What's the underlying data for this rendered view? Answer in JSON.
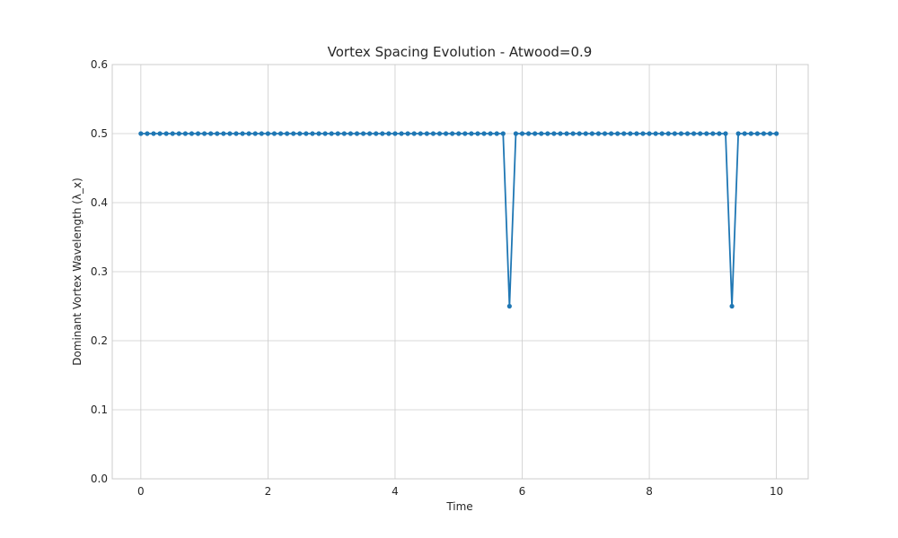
{
  "chart_data": {
    "type": "line",
    "title": "Vortex Spacing Evolution - Atwood=0.9",
    "xlabel": "Time",
    "ylabel": "Dominant Vortex Wavelength (λ_x)",
    "xlim": [
      -0.45,
      10.5
    ],
    "ylim": [
      0,
      0.6
    ],
    "xticks": [
      0,
      2,
      4,
      6,
      8,
      10
    ],
    "yticks": [
      0.0,
      0.1,
      0.2,
      0.3,
      0.4,
      0.5,
      0.6
    ],
    "ytick_labels": [
      "0.0",
      "0.1",
      "0.2",
      "0.3",
      "0.4",
      "0.5",
      "0.6"
    ],
    "grid": true,
    "line_color": "#1f77b4",
    "x": [
      0.0,
      0.1,
      0.2,
      0.3,
      0.4,
      0.5,
      0.6,
      0.7,
      0.8,
      0.9,
      1.0,
      1.1,
      1.2,
      1.3,
      1.4,
      1.5,
      1.6,
      1.7,
      1.8,
      1.9,
      2.0,
      2.1,
      2.2,
      2.3,
      2.4,
      2.5,
      2.6,
      2.7,
      2.8,
      2.9,
      3.0,
      3.1,
      3.2,
      3.3,
      3.4,
      3.5,
      3.6,
      3.7,
      3.8,
      3.9,
      4.0,
      4.1,
      4.2,
      4.3,
      4.4,
      4.5,
      4.6,
      4.7,
      4.8,
      4.9,
      5.0,
      5.1,
      5.2,
      5.3,
      5.4,
      5.5,
      5.6,
      5.7,
      5.8,
      5.9,
      6.0,
      6.1,
      6.2,
      6.3,
      6.4,
      6.5,
      6.6,
      6.7,
      6.8,
      6.9,
      7.0,
      7.1,
      7.2,
      7.3,
      7.4,
      7.5,
      7.6,
      7.7,
      7.8,
      7.9,
      8.0,
      8.1,
      8.2,
      8.3,
      8.4,
      8.5,
      8.6,
      8.7,
      8.8,
      8.9,
      9.0,
      9.1,
      9.2,
      9.3,
      9.4,
      9.5,
      9.6,
      9.7,
      9.8,
      9.9,
      10.0
    ],
    "y": [
      0.5,
      0.5,
      0.5,
      0.5,
      0.5,
      0.5,
      0.5,
      0.5,
      0.5,
      0.5,
      0.5,
      0.5,
      0.5,
      0.5,
      0.5,
      0.5,
      0.5,
      0.5,
      0.5,
      0.5,
      0.5,
      0.5,
      0.5,
      0.5,
      0.5,
      0.5,
      0.5,
      0.5,
      0.5,
      0.5,
      0.5,
      0.5,
      0.5,
      0.5,
      0.5,
      0.5,
      0.5,
      0.5,
      0.5,
      0.5,
      0.5,
      0.5,
      0.5,
      0.5,
      0.5,
      0.5,
      0.5,
      0.5,
      0.5,
      0.5,
      0.5,
      0.5,
      0.5,
      0.5,
      0.5,
      0.5,
      0.5,
      0.5,
      0.25,
      0.5,
      0.5,
      0.5,
      0.5,
      0.5,
      0.5,
      0.5,
      0.5,
      0.5,
      0.5,
      0.5,
      0.5,
      0.5,
      0.5,
      0.5,
      0.5,
      0.5,
      0.5,
      0.5,
      0.5,
      0.5,
      0.5,
      0.5,
      0.5,
      0.5,
      0.5,
      0.5,
      0.5,
      0.5,
      0.5,
      0.5,
      0.5,
      0.5,
      0.5,
      0.25,
      0.5,
      0.5,
      0.5,
      0.5,
      0.5,
      0.5,
      0.5
    ]
  }
}
